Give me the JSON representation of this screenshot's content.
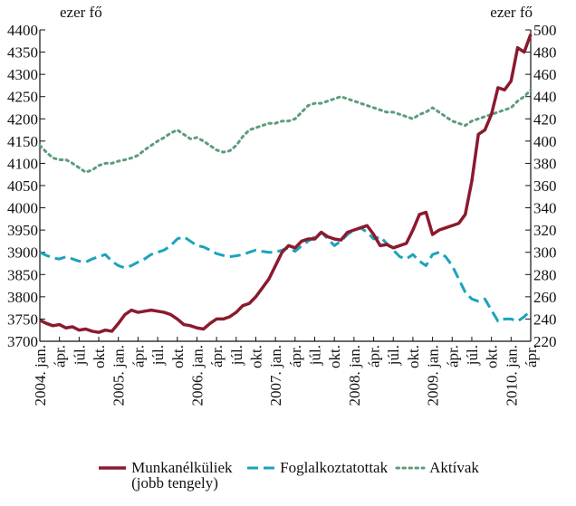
{
  "chart_data": {
    "type": "line",
    "ylabel": "ezer fő",
    "y2label": "ezer fő",
    "categories": [
      "2004. jan.",
      null,
      null,
      "ápr.",
      null,
      null,
      "júl.",
      null,
      null,
      "okt.",
      null,
      null,
      "2005. jan.",
      null,
      null,
      "ápr.",
      null,
      null,
      "júl.",
      null,
      null,
      "okt.",
      null,
      null,
      "2006. jan.",
      null,
      null,
      "ápr.",
      null,
      null,
      "júl.",
      null,
      null,
      "okt.",
      null,
      null,
      "2007. jan.",
      null,
      null,
      "ápr.",
      null,
      null,
      "júl.",
      null,
      null,
      "okt.",
      null,
      null,
      "2008. jan.",
      null,
      null,
      "ápr.",
      null,
      null,
      "júl.",
      null,
      null,
      "okt.",
      null,
      null,
      "2009. jan.",
      null,
      null,
      "ápr.",
      null,
      null,
      "júl.",
      null,
      null,
      "okt.",
      null,
      null,
      "2010. jan.",
      null,
      null,
      "ápr."
    ],
    "series": [
      {
        "name": "Munkanélküliek (jobb tengely)",
        "color": "#8b1a2e",
        "style": "solid",
        "axis": "y2",
        "values": [
          239,
          236,
          234,
          235,
          232,
          233,
          230,
          231,
          229,
          228,
          230,
          229,
          236,
          244,
          248,
          246,
          247,
          248,
          247,
          246,
          244,
          240,
          235,
          234,
          232,
          231,
          236,
          240,
          240,
          242,
          246,
          252,
          254,
          260,
          268,
          276,
          288,
          300,
          306,
          304,
          310,
          312,
          312,
          318,
          314,
          312,
          311,
          318,
          320,
          322,
          324,
          316,
          306,
          307,
          304,
          306,
          308,
          320,
          334,
          336,
          316,
          320,
          322,
          324,
          326,
          334,
          364,
          406,
          410,
          424,
          448,
          446,
          454,
          484,
          480,
          496
        ]
      },
      {
        "name": "Foglalkoztatottak",
        "color": "#1ba3bd",
        "style": "dashed",
        "axis": "y",
        "values": [
          3900,
          3893,
          3887,
          3885,
          3890,
          3885,
          3880,
          3878,
          3885,
          3890,
          3895,
          3880,
          3870,
          3865,
          3870,
          3878,
          3885,
          3895,
          3900,
          3905,
          3915,
          3930,
          3935,
          3925,
          3915,
          3912,
          3905,
          3897,
          3893,
          3890,
          3892,
          3895,
          3900,
          3905,
          3902,
          3900,
          3900,
          3905,
          3910,
          3902,
          3915,
          3925,
          3935,
          3945,
          3930,
          3915,
          3925,
          3940,
          3950,
          3955,
          3945,
          3930,
          3935,
          3920,
          3905,
          3890,
          3885,
          3895,
          3880,
          3870,
          3895,
          3900,
          3890,
          3870,
          3840,
          3810,
          3795,
          3790,
          3795,
          3770,
          3745,
          3750,
          3750,
          3745,
          3755,
          3770
        ]
      },
      {
        "name": "Aktívak",
        "color": "#5e9c7c",
        "style": "dotted",
        "axis": "y",
        "values": [
          4140,
          4125,
          4112,
          4108,
          4108,
          4100,
          4090,
          4080,
          4085,
          4095,
          4100,
          4100,
          4105,
          4108,
          4112,
          4118,
          4130,
          4140,
          4150,
          4158,
          4168,
          4175,
          4165,
          4155,
          4158,
          4150,
          4140,
          4130,
          4125,
          4128,
          4140,
          4160,
          4175,
          4180,
          4185,
          4190,
          4190,
          4195,
          4195,
          4200,
          4215,
          4230,
          4235,
          4235,
          4240,
          4245,
          4250,
          4245,
          4240,
          4235,
          4230,
          4225,
          4220,
          4215,
          4215,
          4210,
          4205,
          4200,
          4210,
          4215,
          4225,
          4215,
          4205,
          4195,
          4190,
          4185,
          4195,
          4200,
          4205,
          4210,
          4215,
          4220,
          4225,
          4240,
          4250,
          4265
        ]
      }
    ],
    "ylim": [
      3700,
      4400
    ],
    "yticks": [
      3700,
      3750,
      3800,
      3850,
      3900,
      3950,
      4000,
      4050,
      4100,
      4150,
      4200,
      4250,
      4300,
      4350,
      4400
    ],
    "y2lim": [
      220,
      500
    ],
    "y2ticks": [
      220,
      240,
      260,
      280,
      300,
      320,
      340,
      360,
      380,
      400,
      420,
      440,
      460,
      480,
      500
    ],
    "grid": false
  }
}
